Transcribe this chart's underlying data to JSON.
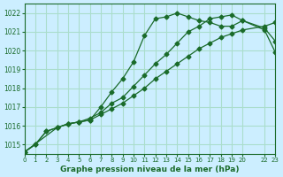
{
  "title": "Graphe pression niveau de la mer (hPa)",
  "bg_color": "#cceeff",
  "grid_color": "#aaddcc",
  "line_color": "#1a6b2a",
  "xlim": [
    0,
    23
  ],
  "ylim": [
    1014.5,
    1022.5
  ],
  "yticks": [
    1015,
    1016,
    1017,
    1018,
    1019,
    1020,
    1021,
    1022
  ],
  "xtick_positions": [
    0,
    1,
    2,
    3,
    4,
    5,
    6,
    7,
    8,
    9,
    10,
    11,
    12,
    13,
    14,
    15,
    16,
    17,
    18,
    19,
    20,
    22,
    23
  ],
  "xtick_labels": [
    "0",
    "1",
    "2",
    "3",
    "4",
    "5",
    "6",
    "7",
    "8",
    "9",
    "10",
    "11",
    "12",
    "13",
    "14",
    "15",
    "16",
    "17",
    "18",
    "19",
    "20",
    "22",
    "23"
  ],
  "series1_x": [
    0,
    1,
    2,
    3,
    4,
    5,
    6,
    7,
    8,
    9,
    10,
    11,
    12,
    13,
    14,
    15,
    16,
    17,
    18,
    19,
    20,
    22,
    23
  ],
  "series1_y": [
    1014.6,
    1015.0,
    1015.7,
    1015.9,
    1016.1,
    1016.2,
    1016.4,
    1016.7,
    1017.2,
    1017.5,
    1018.1,
    1018.7,
    1019.3,
    1019.8,
    1020.4,
    1021.0,
    1021.3,
    1021.7,
    1021.8,
    1021.9,
    1021.6,
    1021.1,
    1019.9
  ],
  "series2_x": [
    0,
    1,
    2,
    3,
    4,
    5,
    6,
    7,
    8,
    9,
    10,
    11,
    12,
    13,
    14,
    15,
    16,
    17,
    18,
    19,
    20,
    22,
    23
  ],
  "series2_y": [
    1014.6,
    1015.0,
    1015.7,
    1015.9,
    1016.1,
    1016.2,
    1016.3,
    1016.6,
    1016.9,
    1017.2,
    1017.6,
    1018.0,
    1018.5,
    1018.9,
    1019.3,
    1019.7,
    1020.1,
    1020.4,
    1020.7,
    1020.9,
    1021.1,
    1021.3,
    1021.5
  ],
  "series3_x": [
    0,
    3,
    4,
    5,
    6,
    7,
    8,
    9,
    10,
    11,
    12,
    13,
    14,
    15,
    16,
    17,
    18,
    19,
    20,
    22,
    23
  ],
  "series3_y": [
    1014.6,
    1015.9,
    1016.1,
    1016.2,
    1016.3,
    1017.0,
    1017.8,
    1018.5,
    1019.4,
    1020.8,
    1021.7,
    1021.8,
    1022.0,
    1021.8,
    1021.6,
    1021.5,
    1021.3,
    1021.3,
    1021.6,
    1021.2,
    1020.5
  ]
}
